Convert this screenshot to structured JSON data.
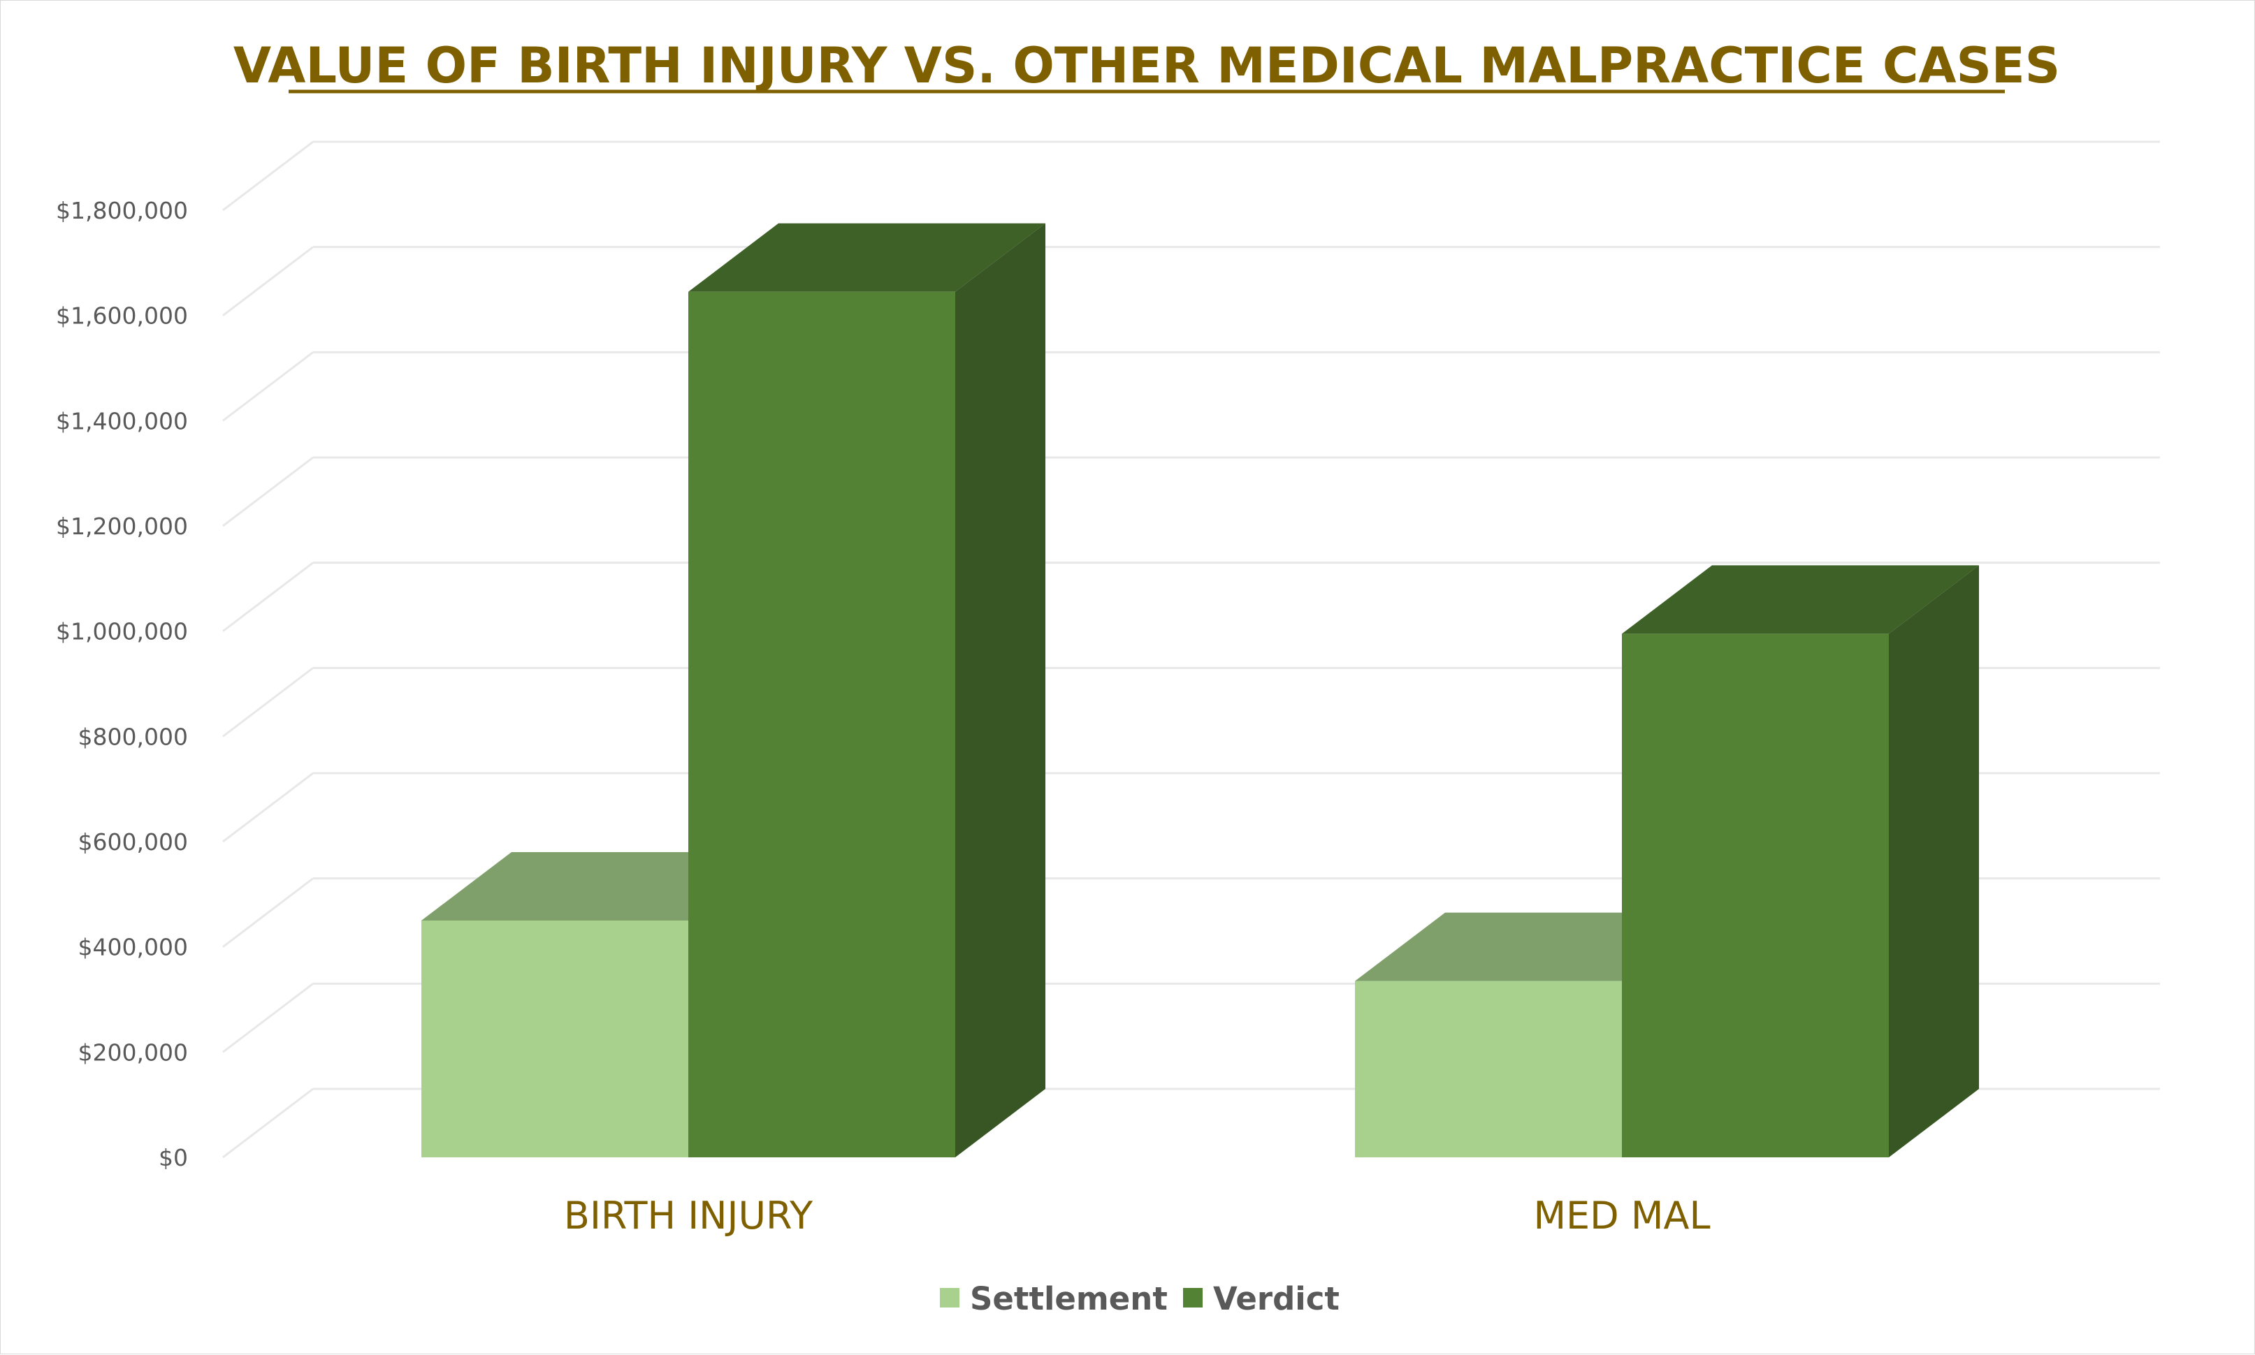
{
  "chart_data": {
    "type": "bar",
    "title": "VALUE OF BIRTH INJURY VS. OTHER MEDICAL MALPRACTICE CASES",
    "categories": [
      "BIRTH INJURY",
      "MED MAL"
    ],
    "series": [
      {
        "name": "Settlement",
        "values": [
          450000,
          335000
        ],
        "color": "#a9d18e",
        "top_color": "#7f9f6b"
      },
      {
        "name": "Verdict",
        "values": [
          1645000,
          995000
        ],
        "color": "#548235",
        "top_color": "#3e6128",
        "side_color": "#375623"
      }
    ],
    "ylim": [
      0,
      1800000
    ],
    "y_ticks": [
      {
        "value": 0,
        "label": "$0"
      },
      {
        "value": 200000,
        "label": "$200,000"
      },
      {
        "value": 400000,
        "label": "$400,000"
      },
      {
        "value": 600000,
        "label": "$600,000"
      },
      {
        "value": 800000,
        "label": "$800,000"
      },
      {
        "value": 1000000,
        "label": "$1,000,000"
      },
      {
        "value": 1200000,
        "label": "$1,200,000"
      },
      {
        "value": 1400000,
        "label": "$1,400,000"
      },
      {
        "value": 1600000,
        "label": "$1,600,000"
      },
      {
        "value": 1800000,
        "label": "$1,800,000"
      }
    ],
    "grid": true,
    "legend_position": "bottom",
    "gridline_color": "#e8e8e8"
  }
}
